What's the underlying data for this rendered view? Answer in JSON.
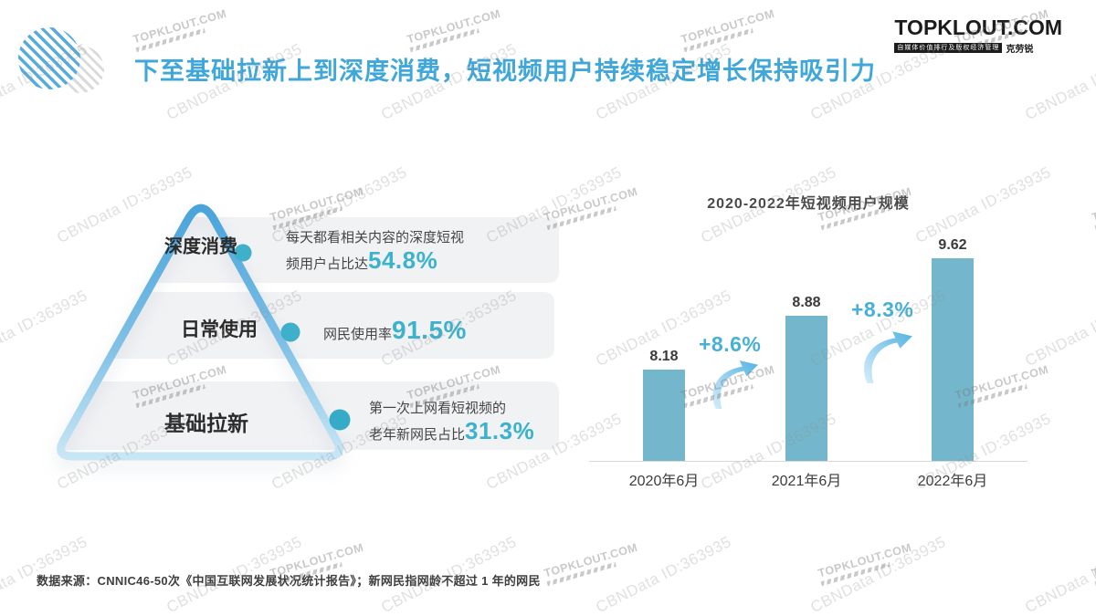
{
  "header": {
    "title": "下至基础拉新上到深度消费，短视频用户持续稳定增长保持吸引力",
    "logo": {
      "name": "TOPKLOUT.COM",
      "tagline": "自媒体价值排行及版权经济管理",
      "cn_name": "克劳锐"
    }
  },
  "watermarks": {
    "cbndata": "CBNData ID:363935",
    "topklout": "TOPKLOUT.COM"
  },
  "pyramid": {
    "levels": [
      {
        "label": "深度消费",
        "desc_line1": "每天都看相关内容的深度短视",
        "desc_line2_prefix": "频用户占比达",
        "value": "54.8%"
      },
      {
        "label": "日常使用",
        "desc_line1": "",
        "desc_line2_prefix": "网民使用率",
        "value": "91.5%"
      },
      {
        "label": "基础拉新",
        "desc_line1": "第一次上网看短视频的",
        "desc_line2_prefix": "老年新网民占比",
        "value": "31.3%"
      }
    ]
  },
  "chart_data": {
    "type": "bar",
    "title": "2020-2022年短视频用户规模",
    "categories": [
      "2020年6月",
      "2021年6月",
      "2022年6月"
    ],
    "values": [
      8.18,
      8.88,
      9.62
    ],
    "growth_labels": [
      "+8.6%",
      "+8.3%"
    ],
    "ylim": [
      7,
      10
    ],
    "grid": false,
    "legend": false,
    "bar_color": "#74b7cd",
    "accent_color": "#46b0d6"
  },
  "footer": {
    "source": "数据来源：CNNIC46-50次《中国互联网发展状况统计报告》；新网民指网龄不超过 1 年的网民"
  },
  "colors": {
    "title_blue": "#3fa7d9",
    "teal_value": "#3cb2cd",
    "band_gray": "#f1f2f4",
    "triangle_top": "#4aa4da",
    "triangle_bottom": "#c8e6f5"
  }
}
